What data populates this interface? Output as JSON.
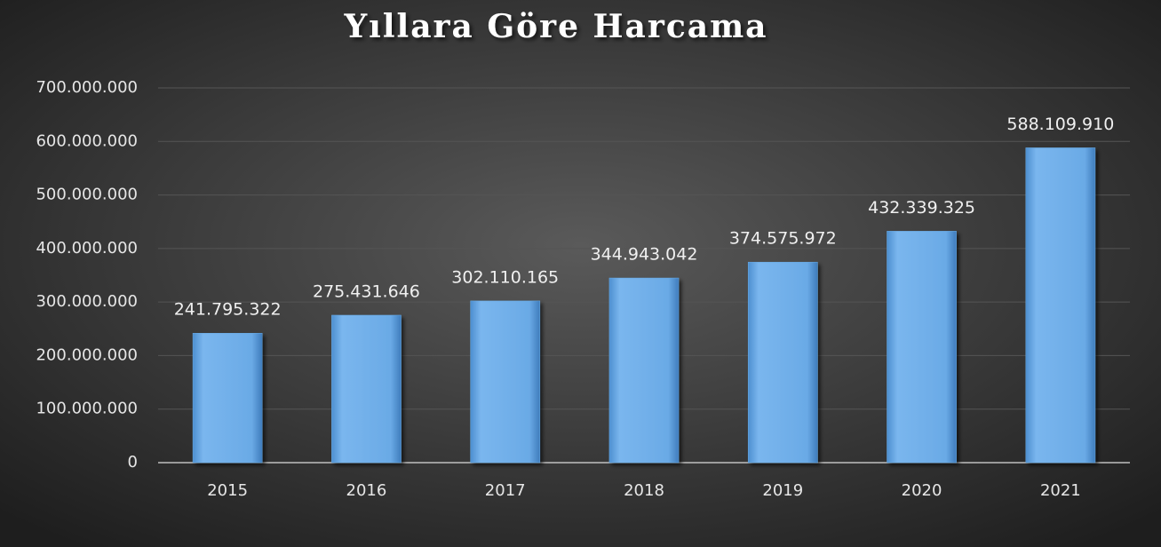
{
  "chart_data": {
    "type": "bar",
    "title": "Yıllara Göre Harcama",
    "categories": [
      "2015",
      "2016",
      "2017",
      "2018",
      "2019",
      "2020",
      "2021"
    ],
    "values": [
      241795322,
      275431646,
      302110165,
      344943042,
      374575972,
      432339325,
      588109910
    ],
    "value_labels": [
      "241.795.322",
      "275.431.646",
      "302.110.165",
      "344.943.042",
      "374.575.972",
      "432.339.325",
      "588.109.910"
    ],
    "color": "#6aaee8",
    "ylim": [
      0,
      700000000
    ],
    "yticks": [
      0,
      {
        "value": 100000000,
        "label": "100.000.000"
      },
      {
        "value": 200000000,
        "label": "200.000.000"
      },
      {
        "value": 300000000,
        "label": "300.000.000"
      },
      {
        "value": 400000000,
        "label": "400.000.000"
      },
      {
        "value": 500000000,
        "label": "500.000.000"
      },
      {
        "value": 600000000,
        "label": "600.000.000"
      },
      {
        "value": 700000000,
        "label": "700.000.000"
      }
    ],
    "grid": true
  }
}
